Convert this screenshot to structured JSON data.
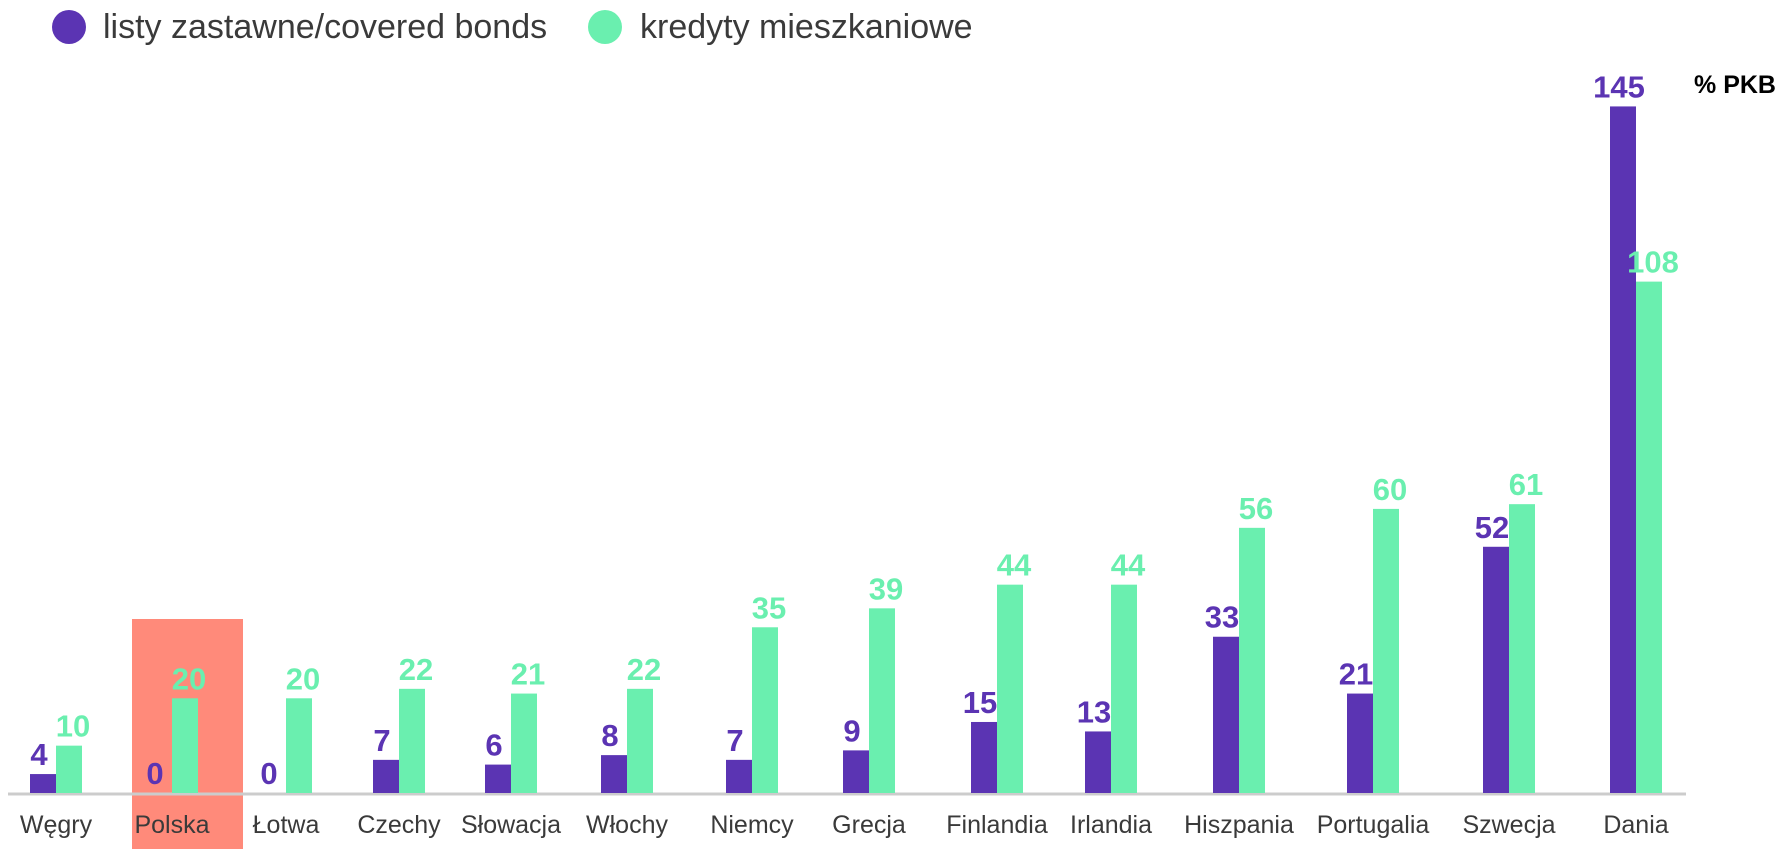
{
  "colors": {
    "covered_bonds": "#5B34B3",
    "mortgages": "#6AEFAF",
    "highlight": "#FF8A7A",
    "baseline": "#CCCCCC",
    "label_text": "#3A3A3A"
  },
  "legend": {
    "covered_bonds": "listy zastawne/covered bonds",
    "mortgages": "kredyty mieszkaniowe"
  },
  "unit_label": "% PKB",
  "highlighted_category": "Polska",
  "chart_data": {
    "type": "bar",
    "title": "",
    "xlabel": "",
    "ylabel": "% PKB",
    "ylim": [
      0,
      150
    ],
    "grid": false,
    "legend_position": "top-left",
    "categories": [
      "Węgry",
      "Polska",
      "Łotwa",
      "Czechy",
      "Słowacja",
      "Włochy",
      "Niemcy",
      "Grecja",
      "Finlandia",
      "Irlandia",
      "Hiszpania",
      "Portugalia",
      "Szwecja",
      "Dania"
    ],
    "series": [
      {
        "name": "listy zastawne/covered bonds",
        "color_key": "covered_bonds",
        "values": [
          4,
          0,
          0,
          7,
          6,
          8,
          7,
          9,
          15,
          13,
          33,
          21,
          52,
          145
        ]
      },
      {
        "name": "kredyty mieszkaniowe",
        "color_key": "mortgages",
        "values": [
          10,
          20,
          20,
          22,
          21,
          22,
          35,
          39,
          44,
          44,
          56,
          60,
          61,
          108
        ]
      }
    ]
  }
}
